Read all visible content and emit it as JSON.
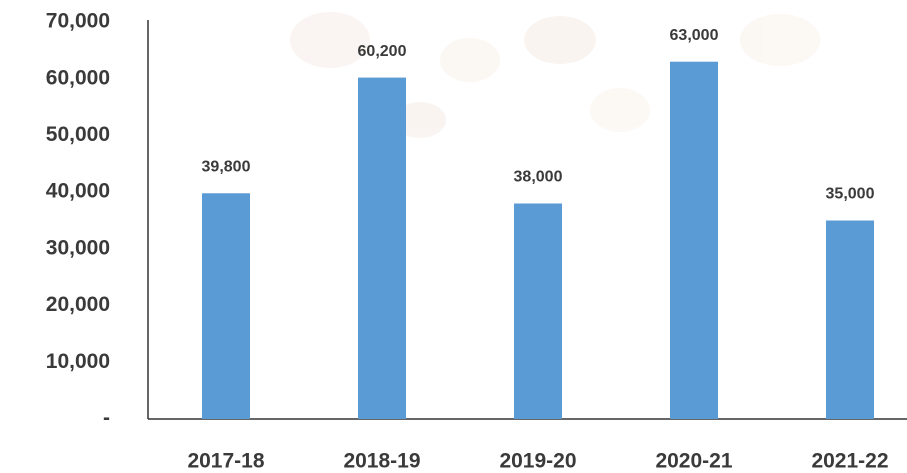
{
  "chart_data": {
    "type": "bar",
    "categories": [
      "2017-18",
      "2018-19",
      "2019-20",
      "2020-21",
      "2021-22"
    ],
    "values": [
      39800,
      60200,
      38000,
      63000,
      35000
    ],
    "value_labels": [
      "39,800",
      "60,200",
      "38,000",
      "63,000",
      "35,000"
    ],
    "color": "#5b9bd5",
    "ylim": [
      0,
      70000
    ],
    "yticks": [
      {
        "value": 0,
        "label": "-"
      },
      {
        "value": 10000,
        "label": "10,000"
      },
      {
        "value": 20000,
        "label": "20,000"
      },
      {
        "value": 30000,
        "label": "30,000"
      },
      {
        "value": 40000,
        "label": "40,000"
      },
      {
        "value": 50000,
        "label": "50,000"
      },
      {
        "value": 60000,
        "label": "60,000"
      },
      {
        "value": 70000,
        "label": "70,000"
      }
    ],
    "grid": false
  }
}
